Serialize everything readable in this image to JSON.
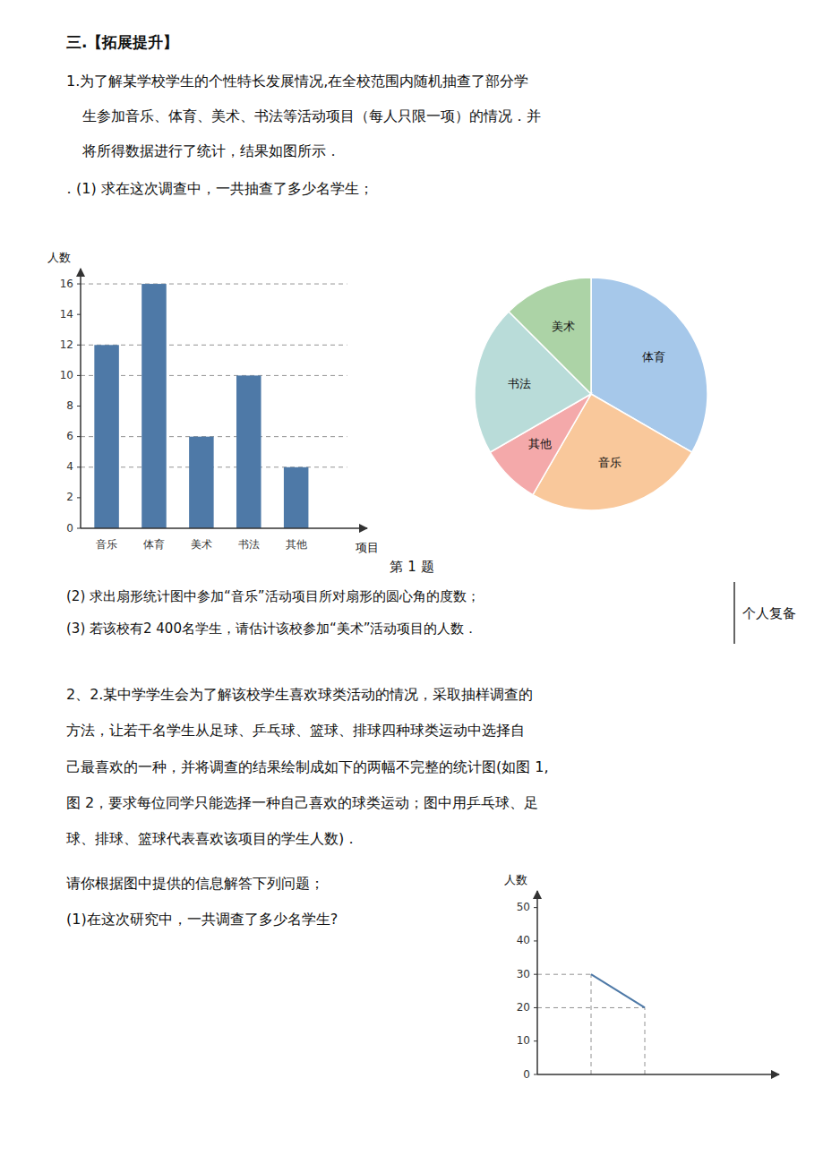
{
  "chart_data": [
    {
      "type": "bar",
      "categories": [
        "音乐",
        "体育",
        "美术",
        "书法",
        "其他"
      ],
      "values": [
        12,
        16,
        6,
        10,
        4
      ],
      "ylim": [
        0,
        17
      ],
      "yticks": [
        0,
        2,
        4,
        6,
        8,
        10,
        12,
        14,
        16
      ],
      "ylabel": "人数",
      "xlabel": "项目",
      "annotations": [
        "三.【拓展提升】",
        "1.为了解某学校学生的个性特长发展情况,在全校范围内随机抽查了部分学",
        "生参加音乐、体育、美术、书法等活动项目（每人只限一项）的情况．并",
        "将所得数据进行了统计，结果如图所示．",
        "．(1) 求在这次调查中，一共抽查了多少名学生；",
        "第 1 题",
        "(2) 求出扇形统计图中参加“音乐”活动项目所对扇形的圆心角的度数；",
        "(3) 若该校有2 400名学生，请估计该校参加“美术”活动项目的人数．",
        "个人复备"
      ]
    },
    {
      "type": "pie",
      "categories": [
        "体育",
        "音乐",
        "其他",
        "书法",
        "美术"
      ],
      "values": [
        16,
        12,
        4,
        10,
        6
      ]
    },
    {
      "type": "line",
      "x": [
        1,
        2
      ],
      "values": [
        30,
        20
      ],
      "xlim": [
        0,
        4.5
      ],
      "ylim": [
        0,
        55
      ],
      "yticks": [
        0,
        10,
        20,
        30,
        40,
        50
      ],
      "ylabel": "人数",
      "tick_labels": "y",
      "annotations": [
        "2、2.某中学学生会为了解该校学生喜欢球类活动的情况，采取抽样调查的",
        "方法，让若干名学生从足球、乒乓球、篮球、排球四种球类运动中选择自",
        "己最喜欢的一种，并将调查的结果绘制成如下的两幅不完整的统计图(如图 1,",
        "图 2，要求每位同学只能选择一种自己喜欢的球类运动；图中用乒乓球、足",
        "球、排球、篮球代表喜欢该项目的学生人数)．",
        "请你根据图中提供的信息解答下列问题；",
        "(1)在这次研究中，一共调查了多少名学生?"
      ]
    }
  ]
}
